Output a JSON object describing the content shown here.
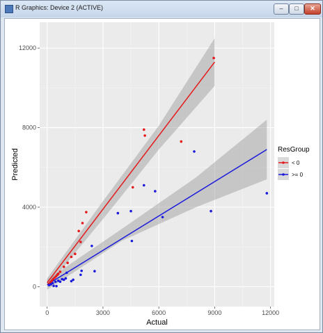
{
  "window": {
    "title": "R Graphics: Device 2 (ACTIVE)",
    "minimize_glyph": "–",
    "maximize_glyph": "□",
    "close_glyph": "✕"
  },
  "chart_data": {
    "type": "scatter",
    "xlabel": "Actual",
    "ylabel": "Predicted",
    "xlim": [
      -400,
      12200
    ],
    "ylim": [
      -1000,
      13300
    ],
    "x_ticks": [
      0,
      3000,
      6000,
      9000,
      12000
    ],
    "y_ticks": [
      0,
      4000,
      8000,
      12000
    ],
    "grid": true,
    "legend": {
      "title": "ResGroup",
      "placement": "right"
    },
    "series": [
      {
        "name": "< 0",
        "color": "#e41a1c",
        "points": [
          [
            100,
            150
          ],
          [
            180,
            230
          ],
          [
            250,
            300
          ],
          [
            320,
            380
          ],
          [
            400,
            450
          ],
          [
            480,
            520
          ],
          [
            550,
            600
          ],
          [
            600,
            650
          ],
          [
            700,
            750
          ],
          [
            900,
            1000
          ],
          [
            1100,
            1200
          ],
          [
            1300,
            1500
          ],
          [
            1500,
            1650
          ],
          [
            1700,
            2800
          ],
          [
            1800,
            2250
          ],
          [
            1900,
            3200
          ],
          [
            2100,
            3750
          ],
          [
            4600,
            5000
          ],
          [
            5200,
            7900
          ],
          [
            5250,
            7600
          ],
          [
            7200,
            7300
          ],
          [
            8950,
            11500
          ]
        ],
        "fit": {
          "x": [
            0,
            9000
          ],
          "y": [
            200,
            11300
          ]
        },
        "ci_upper": [
          [
            0,
            420
          ],
          [
            3000,
            4300
          ],
          [
            6000,
            8100
          ],
          [
            9000,
            12500
          ]
        ],
        "ci_lower": [
          [
            0,
            0
          ],
          [
            3000,
            3400
          ],
          [
            6000,
            6900
          ],
          [
            9000,
            10100
          ]
        ]
      },
      {
        "name": ">= 0",
        "color": "#1a1adc",
        "points": [
          [
            100,
            80
          ],
          [
            200,
            120
          ],
          [
            300,
            180
          ],
          [
            350,
            40
          ],
          [
            450,
            250
          ],
          [
            500,
            30
          ],
          [
            600,
            300
          ],
          [
            700,
            250
          ],
          [
            800,
            380
          ],
          [
            900,
            350
          ],
          [
            1000,
            420
          ],
          [
            1050,
            700
          ],
          [
            1300,
            280
          ],
          [
            1400,
            350
          ],
          [
            1800,
            600
          ],
          [
            1850,
            800
          ],
          [
            2400,
            2050
          ],
          [
            2550,
            780
          ],
          [
            3800,
            3700
          ],
          [
            4500,
            3800
          ],
          [
            4550,
            2300
          ],
          [
            5200,
            5100
          ],
          [
            5800,
            4800
          ],
          [
            6200,
            3500
          ],
          [
            7900,
            6800
          ],
          [
            8800,
            3800
          ],
          [
            11800,
            4700
          ]
        ],
        "fit": {
          "x": [
            0,
            11800
          ],
          "y": [
            100,
            6900
          ]
        },
        "ci_upper": [
          [
            0,
            350
          ],
          [
            4000,
            2900
          ],
          [
            8000,
            5500
          ],
          [
            11800,
            8400
          ]
        ],
        "ci_lower": [
          [
            0,
            -150
          ],
          [
            4000,
            2300
          ],
          [
            8000,
            4000
          ],
          [
            11800,
            5400
          ]
        ]
      }
    ]
  }
}
